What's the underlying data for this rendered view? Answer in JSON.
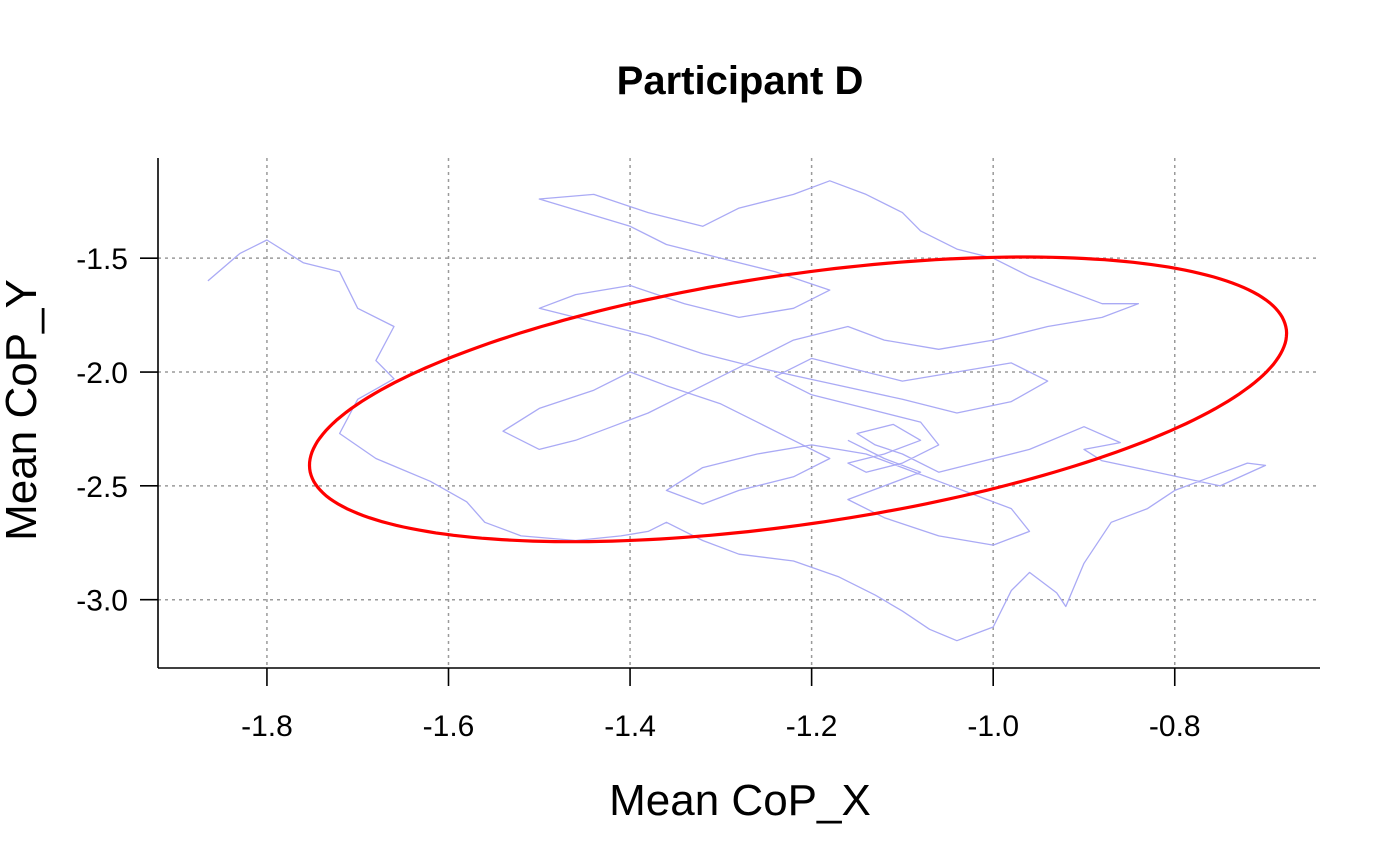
{
  "chart_data": {
    "type": "line",
    "title": "Participant D",
    "xlabel": "Mean CoP_X",
    "ylabel": "Mean CoP_Y",
    "xlim": [
      -1.92,
      -0.64
    ],
    "ylim": [
      -3.3,
      -1.06
    ],
    "x_ticks": [
      -1.8,
      -1.6,
      -1.4,
      -1.2,
      -1.0,
      -0.8
    ],
    "y_ticks": [
      -1.5,
      -2.0,
      -2.5,
      -3.0
    ],
    "x_tick_labels": [
      "-1.8",
      "-1.6",
      "-1.4",
      "-1.2",
      "-1.0",
      "-0.8"
    ],
    "y_tick_labels": [
      "-1.5",
      "-2.0",
      "-2.5",
      "-3.0"
    ],
    "grid": true,
    "colors": {
      "trace": "#aaaaf5",
      "ellipse": "#ff0000",
      "grid": "#9a9a9a"
    },
    "series": [
      {
        "type": "line",
        "points": [
          [
            -1.865,
            -1.6
          ],
          [
            -1.83,
            -1.48
          ],
          [
            -1.8,
            -1.42
          ],
          [
            -1.76,
            -1.52
          ],
          [
            -1.72,
            -1.56
          ],
          [
            -1.7,
            -1.72
          ],
          [
            -1.66,
            -1.8
          ],
          [
            -1.68,
            -1.95
          ],
          [
            -1.66,
            -2.03
          ],
          [
            -1.7,
            -2.12
          ],
          [
            -1.72,
            -2.27
          ],
          [
            -1.68,
            -2.38
          ],
          [
            -1.62,
            -2.48
          ],
          [
            -1.58,
            -2.57
          ],
          [
            -1.56,
            -2.66
          ],
          [
            -1.52,
            -2.72
          ],
          [
            -1.46,
            -2.74
          ],
          [
            -1.41,
            -2.72
          ],
          [
            -1.38,
            -2.7
          ],
          [
            -1.36,
            -2.66
          ],
          [
            -1.32,
            -2.74
          ],
          [
            -1.28,
            -2.8
          ],
          [
            -1.22,
            -2.83
          ],
          [
            -1.17,
            -2.9
          ],
          [
            -1.13,
            -2.98
          ],
          [
            -1.1,
            -3.05
          ],
          [
            -1.07,
            -3.13
          ],
          [
            -1.04,
            -3.18
          ],
          [
            -1.0,
            -3.12
          ],
          [
            -0.98,
            -2.96
          ],
          [
            -0.96,
            -2.88
          ],
          [
            -0.93,
            -2.97
          ],
          [
            -0.92,
            -3.03
          ],
          [
            -0.9,
            -2.84
          ],
          [
            -0.87,
            -2.66
          ],
          [
            -0.83,
            -2.6
          ],
          [
            -0.8,
            -2.52
          ],
          [
            -0.76,
            -2.46
          ],
          [
            -0.72,
            -2.4
          ],
          [
            -0.7,
            -2.41
          ],
          [
            -0.75,
            -2.5
          ],
          [
            -0.82,
            -2.44
          ],
          [
            -0.88,
            -2.39
          ],
          [
            -0.9,
            -2.34
          ],
          [
            -0.86,
            -2.31
          ],
          [
            -0.9,
            -2.24
          ],
          [
            -0.96,
            -2.34
          ],
          [
            -1.02,
            -2.4
          ],
          [
            -1.06,
            -2.44
          ],
          [
            -1.1,
            -2.36
          ],
          [
            -1.13,
            -2.32
          ],
          [
            -1.15,
            -2.27
          ],
          [
            -1.11,
            -2.23
          ],
          [
            -1.08,
            -2.3
          ],
          [
            -1.12,
            -2.36
          ],
          [
            -1.16,
            -2.4
          ],
          [
            -1.14,
            -2.44
          ],
          [
            -1.1,
            -2.4
          ],
          [
            -1.06,
            -2.32
          ],
          [
            -1.08,
            -2.22
          ],
          [
            -1.14,
            -2.16
          ],
          [
            -1.2,
            -2.1
          ],
          [
            -1.24,
            -2.02
          ],
          [
            -1.2,
            -1.94
          ],
          [
            -1.16,
            -1.98
          ],
          [
            -1.1,
            -2.04
          ],
          [
            -1.04,
            -2.0
          ],
          [
            -0.98,
            -1.96
          ],
          [
            -0.94,
            -2.04
          ],
          [
            -0.98,
            -2.13
          ],
          [
            -1.04,
            -2.18
          ],
          [
            -1.1,
            -2.12
          ],
          [
            -1.18,
            -2.05
          ],
          [
            -1.26,
            -1.98
          ],
          [
            -1.32,
            -1.92
          ],
          [
            -1.38,
            -1.84
          ],
          [
            -1.44,
            -1.78
          ],
          [
            -1.5,
            -1.72
          ],
          [
            -1.46,
            -1.66
          ],
          [
            -1.4,
            -1.62
          ],
          [
            -1.34,
            -1.7
          ],
          [
            -1.28,
            -1.76
          ],
          [
            -1.22,
            -1.72
          ],
          [
            -1.18,
            -1.64
          ],
          [
            -1.24,
            -1.56
          ],
          [
            -1.3,
            -1.5
          ],
          [
            -1.36,
            -1.44
          ],
          [
            -1.4,
            -1.36
          ],
          [
            -1.45,
            -1.3
          ],
          [
            -1.5,
            -1.24
          ],
          [
            -1.44,
            -1.22
          ],
          [
            -1.38,
            -1.3
          ],
          [
            -1.32,
            -1.36
          ],
          [
            -1.28,
            -1.28
          ],
          [
            -1.22,
            -1.22
          ],
          [
            -1.18,
            -1.16
          ],
          [
            -1.14,
            -1.22
          ],
          [
            -1.1,
            -1.3
          ],
          [
            -1.08,
            -1.38
          ],
          [
            -1.04,
            -1.46
          ],
          [
            -1.0,
            -1.5
          ],
          [
            -0.96,
            -1.58
          ],
          [
            -0.92,
            -1.64
          ],
          [
            -0.88,
            -1.7
          ],
          [
            -0.84,
            -1.7
          ],
          [
            -0.88,
            -1.76
          ],
          [
            -0.94,
            -1.8
          ],
          [
            -1.0,
            -1.86
          ],
          [
            -1.06,
            -1.9
          ],
          [
            -1.12,
            -1.86
          ],
          [
            -1.16,
            -1.8
          ],
          [
            -1.22,
            -1.86
          ],
          [
            -1.26,
            -1.94
          ],
          [
            -1.3,
            -2.02
          ],
          [
            -1.34,
            -2.1
          ],
          [
            -1.38,
            -2.18
          ],
          [
            -1.42,
            -2.24
          ],
          [
            -1.46,
            -2.3
          ],
          [
            -1.5,
            -2.34
          ],
          [
            -1.54,
            -2.26
          ],
          [
            -1.5,
            -2.16
          ],
          [
            -1.44,
            -2.08
          ],
          [
            -1.4,
            -2.0
          ],
          [
            -1.36,
            -2.06
          ],
          [
            -1.3,
            -2.14
          ],
          [
            -1.26,
            -2.22
          ],
          [
            -1.22,
            -2.3
          ],
          [
            -1.18,
            -2.38
          ],
          [
            -1.22,
            -2.46
          ],
          [
            -1.28,
            -2.52
          ],
          [
            -1.32,
            -2.58
          ],
          [
            -1.36,
            -2.52
          ],
          [
            -1.32,
            -2.42
          ],
          [
            -1.26,
            -2.36
          ],
          [
            -1.2,
            -2.32
          ],
          [
            -1.14,
            -2.36
          ],
          [
            -1.1,
            -2.42
          ],
          [
            -1.06,
            -2.48
          ],
          [
            -1.02,
            -2.54
          ],
          [
            -0.98,
            -2.6
          ],
          [
            -0.96,
            -2.7
          ],
          [
            -1.0,
            -2.76
          ],
          [
            -1.06,
            -2.72
          ],
          [
            -1.12,
            -2.64
          ],
          [
            -1.16,
            -2.56
          ],
          [
            -1.12,
            -2.5
          ],
          [
            -1.08,
            -2.44
          ],
          [
            -1.12,
            -2.38
          ],
          [
            -1.16,
            -2.3
          ]
        ]
      }
    ],
    "ellipse": {
      "center": [
        -1.215,
        -2.12
      ],
      "semi_axis_major": 0.42,
      "semi_axis_minor": 0.71,
      "rotation_deg": -36
    }
  }
}
